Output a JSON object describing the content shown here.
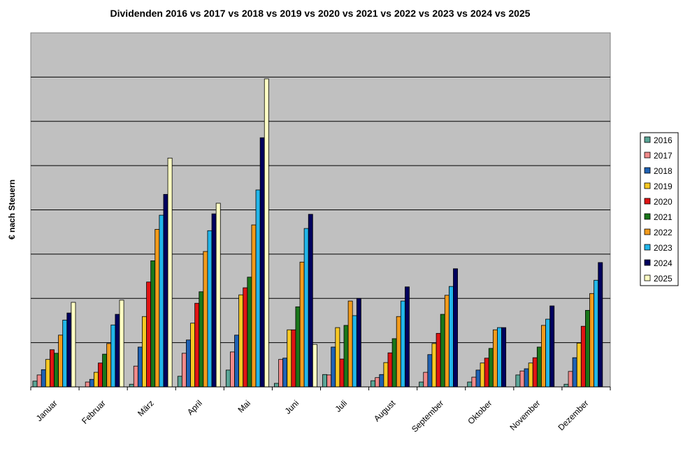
{
  "chart_data": {
    "type": "bar",
    "title": "Dividenden 2016 vs 2017 vs 2018 vs 2019 vs 2020 vs 2021 vs 2022 vs 2023 vs 2024 vs 2025",
    "xlabel": "",
    "ylabel": "€ nach Steuern",
    "ylim": [
      0,
      8
    ],
    "y_units_note": "gridline units (no tick labels shown)",
    "grid": true,
    "legend_position": "right",
    "categories": [
      "Januar",
      "Februar",
      "März",
      "April",
      "Mai",
      "Juni",
      "Juli",
      "August",
      "September",
      "Oktober",
      "November",
      "Dezember"
    ],
    "series": [
      {
        "name": "2016",
        "color": "#5aa596",
        "values": [
          0.13,
          0,
          0.06,
          0.24,
          0.38,
          0.08,
          0.28,
          0.14,
          0.11,
          0.11,
          0.27,
          0.06
        ]
      },
      {
        "name": "2017",
        "color": "#f08a8a",
        "values": [
          0.27,
          0.11,
          0.47,
          0.76,
          0.79,
          0.62,
          0.27,
          0.21,
          0.33,
          0.22,
          0.36,
          0.35
        ]
      },
      {
        "name": "2018",
        "color": "#1f62b4",
        "values": [
          0.39,
          0.17,
          0.9,
          1.06,
          1.17,
          0.65,
          0.9,
          0.28,
          0.73,
          0.38,
          0.41,
          0.66
        ]
      },
      {
        "name": "2019",
        "color": "#f7c823",
        "values": [
          0.62,
          0.33,
          1.59,
          1.44,
          2.08,
          1.29,
          1.34,
          0.55,
          0.98,
          0.54,
          0.54,
          0.99
        ]
      },
      {
        "name": "2020",
        "color": "#e01414",
        "values": [
          0.84,
          0.54,
          2.37,
          1.89,
          2.24,
          1.29,
          0.63,
          0.77,
          1.21,
          0.65,
          0.66,
          1.37
        ]
      },
      {
        "name": "2021",
        "color": "#1a771a",
        "values": [
          0.76,
          0.74,
          2.85,
          2.15,
          2.48,
          1.81,
          1.39,
          1.09,
          1.64,
          0.87,
          0.9,
          1.73
        ]
      },
      {
        "name": "2022",
        "color": "#f29b1c",
        "values": [
          1.17,
          0.98,
          3.56,
          3.06,
          3.66,
          2.82,
          1.94,
          1.59,
          2.07,
          1.29,
          1.39,
          2.11
        ]
      },
      {
        "name": "2023",
        "color": "#22b6ea",
        "values": [
          1.51,
          1.4,
          3.88,
          3.53,
          4.45,
          3.58,
          1.61,
          1.94,
          2.27,
          1.34,
          1.53,
          2.41
        ]
      },
      {
        "name": "2024",
        "color": "#00005e",
        "values": [
          1.67,
          1.64,
          4.35,
          3.91,
          5.63,
          3.9,
          2.0,
          2.26,
          2.67,
          1.34,
          1.83,
          2.81
        ]
      },
      {
        "name": "2025",
        "color": "#ffffc4",
        "values": [
          1.91,
          1.96,
          5.17,
          4.15,
          6.96,
          0.96,
          0,
          0,
          0,
          0,
          0,
          0
        ]
      }
    ]
  }
}
